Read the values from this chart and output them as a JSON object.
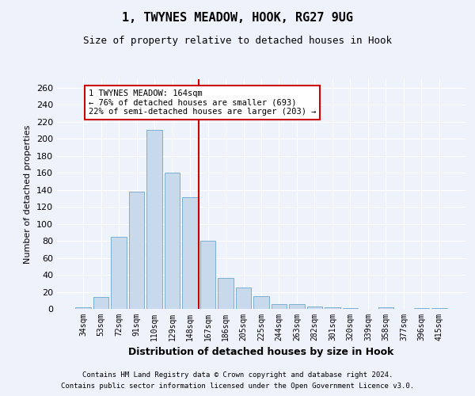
{
  "title": "1, TWYNES MEADOW, HOOK, RG27 9UG",
  "subtitle": "Size of property relative to detached houses in Hook",
  "xlabel": "Distribution of detached houses by size in Hook",
  "ylabel": "Number of detached properties",
  "footer_line1": "Contains HM Land Registry data © Crown copyright and database right 2024.",
  "footer_line2": "Contains public sector information licensed under the Open Government Licence v3.0.",
  "bin_labels": [
    "34sqm",
    "53sqm",
    "72sqm",
    "91sqm",
    "110sqm",
    "129sqm",
    "148sqm",
    "167sqm",
    "186sqm",
    "205sqm",
    "225sqm",
    "244sqm",
    "263sqm",
    "282sqm",
    "301sqm",
    "320sqm",
    "339sqm",
    "358sqm",
    "377sqm",
    "396sqm",
    "415sqm"
  ],
  "bar_heights": [
    2,
    14,
    85,
    138,
    210,
    160,
    131,
    80,
    36,
    25,
    15,
    6,
    6,
    3,
    2,
    1,
    0,
    2,
    0,
    1,
    1
  ],
  "bar_color": "#c8d9ec",
  "bar_edge_color": "#7aafd5",
  "background_color": "#eef3fb",
  "grid_color": "#ffffff",
  "vline_x": 6.5,
  "vline_color": "#cc0000",
  "annotation_text": "1 TWYNES MEADOW: 164sqm\n← 76% of detached houses are smaller (693)\n22% of semi-detached houses are larger (203) →",
  "annotation_box_color": "#ffffff",
  "annotation_box_edge_color": "#cc0000",
  "ylim": [
    0,
    270
  ],
  "yticks": [
    0,
    20,
    40,
    60,
    80,
    100,
    120,
    140,
    160,
    180,
    200,
    220,
    240,
    260
  ]
}
